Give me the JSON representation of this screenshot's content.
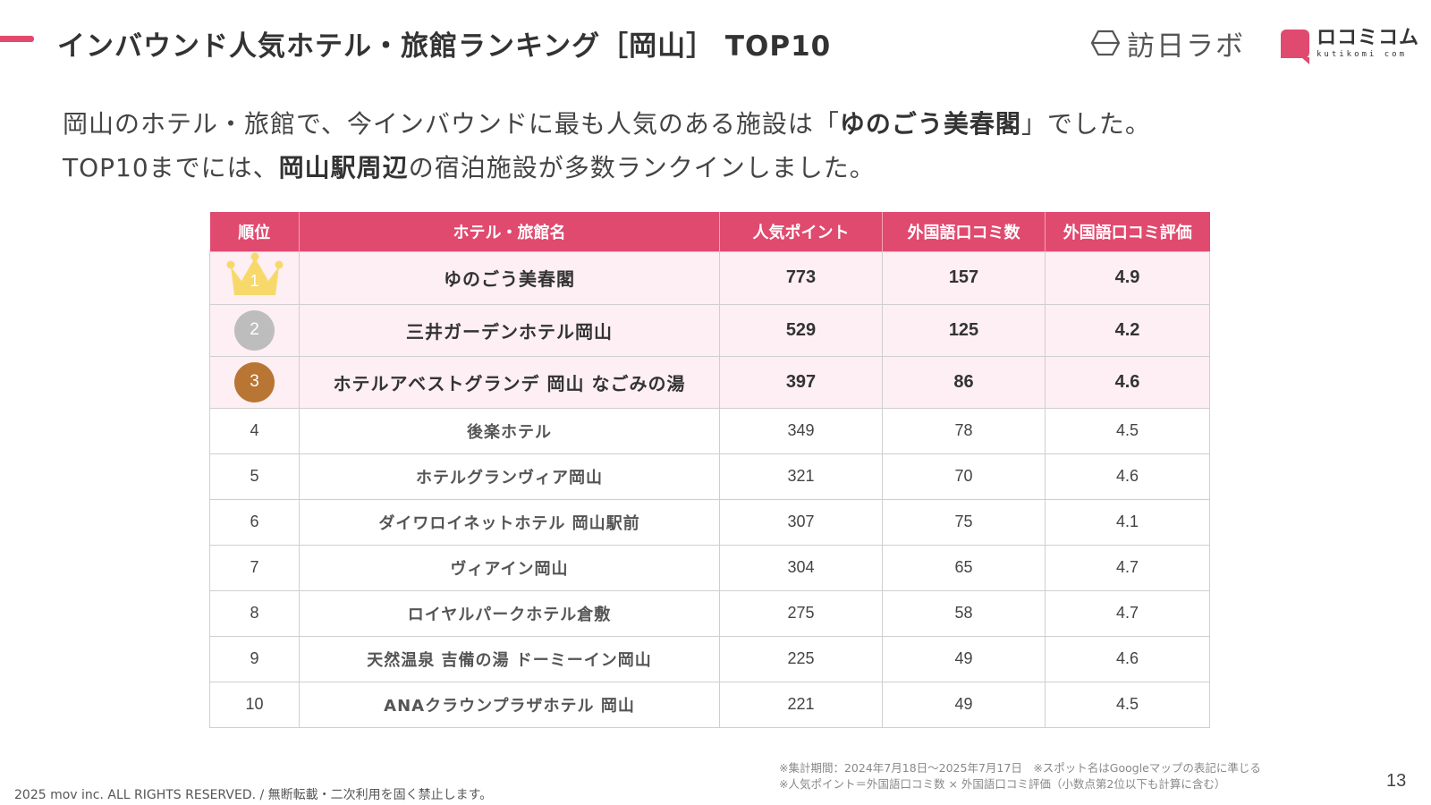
{
  "colors": {
    "accent": "#e04a6f",
    "row_highlight": "#fdeff3",
    "gold": "#f7d96b",
    "silver": "#bdbdbd",
    "bronze": "#b87533"
  },
  "header": {
    "title": "インバウンド人気ホテル・旅館ランキング［岡山］ TOP10",
    "logo_houjin": "訪日ラボ",
    "logo_kutikomi": "ロコミコム",
    "logo_kutikomi_sub": "kutikomi com"
  },
  "lead": {
    "line1_a": "岡山のホテル・旅館で、今インバウンドに最も人気のある施設は「",
    "line1_b": "ゆのごう美春閣",
    "line1_c": "」でした。",
    "line2_a": "TOP10までには、",
    "line2_b": "岡山駅周辺",
    "line2_c": "の宿泊施設が多数ランクインしました。"
  },
  "table": {
    "headers": [
      "順位",
      "ホテル・旅館名",
      "人気ポイント",
      "外国語口コミ数",
      "外国語口コミ評価"
    ],
    "rows": [
      {
        "rank": "1",
        "name": "ゆのごう美春閣",
        "points": "773",
        "reviews": "157",
        "rating": "4.9"
      },
      {
        "rank": "2",
        "name": "三井ガーデンホテル岡山",
        "points": "529",
        "reviews": "125",
        "rating": "4.2"
      },
      {
        "rank": "3",
        "name": "ホテルアベストグランデ 岡山 なごみの湯",
        "points": "397",
        "reviews": "86",
        "rating": "4.6"
      },
      {
        "rank": "4",
        "name": "後楽ホテル",
        "points": "349",
        "reviews": "78",
        "rating": "4.5"
      },
      {
        "rank": "5",
        "name": "ホテルグランヴィア岡山",
        "points": "321",
        "reviews": "70",
        "rating": "4.6"
      },
      {
        "rank": "6",
        "name": "ダイワロイネットホテル 岡山駅前",
        "points": "307",
        "reviews": "75",
        "rating": "4.1"
      },
      {
        "rank": "7",
        "name": "ヴィアイン岡山",
        "points": "304",
        "reviews": "65",
        "rating": "4.7"
      },
      {
        "rank": "8",
        "name": "ロイヤルパークホテル倉敷",
        "points": "275",
        "reviews": "58",
        "rating": "4.7"
      },
      {
        "rank": "9",
        "name": "天然温泉 吉備の湯 ドーミーイン岡山",
        "points": "225",
        "reviews": "49",
        "rating": "4.6"
      },
      {
        "rank": "10",
        "name": "ANAクラウンプラザホテル 岡山",
        "points": "221",
        "reviews": "49",
        "rating": "4.5"
      }
    ]
  },
  "footer": {
    "note1": "※集計期間：2024年7月18日〜2025年7月17日　※スポット名はGoogleマップの表記に準じる",
    "note2": "※人気ポイント＝外国語口コミ数 × 外国語口コミ評価（小数点第2位以下も計算に含む）",
    "copyright": "2025 mov inc. ALL RIGHTS RESERVED. / 無断転載・二次利用を固く禁止します。",
    "page_number": "13"
  }
}
